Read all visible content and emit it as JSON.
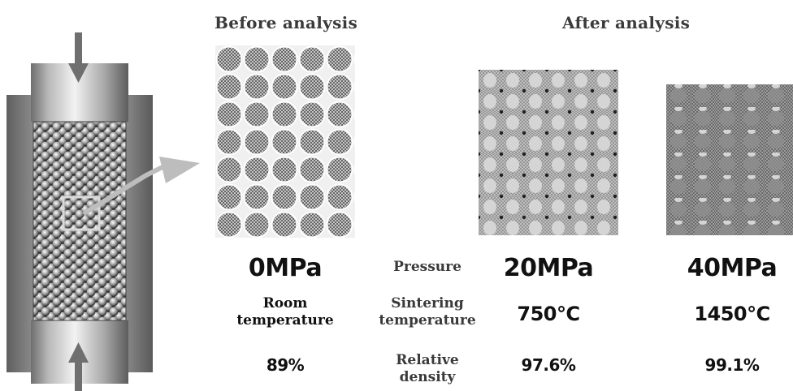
{
  "headers": {
    "before": "Before analysis",
    "after": "After analysis"
  },
  "row_labels": {
    "pressure": "Pressure",
    "temperature_l1": "Sintering",
    "temperature_l2": "temperature",
    "density_l1": "Relative",
    "density_l2": "density"
  },
  "columns": [
    {
      "pressure": "0MPa",
      "temperature_l1": "Room",
      "temperature_l2": "temperature",
      "density": "89%"
    },
    {
      "pressure": "20MPa",
      "temperature": "750℃",
      "density": "97.6%"
    },
    {
      "pressure": "40MPa",
      "temperature": "1450℃",
      "density": "99.1%"
    }
  ]
}
